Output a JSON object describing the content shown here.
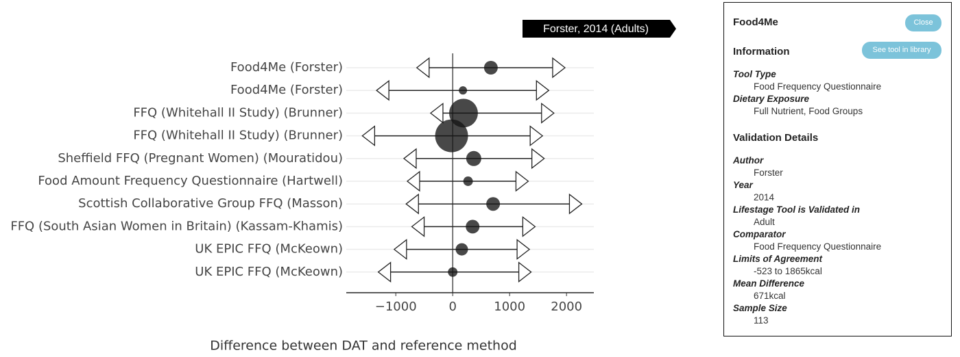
{
  "chart_data": {
    "type": "bubble-agreement",
    "categories": [
      "Food4Me (Forster)",
      "Food4Me (Forster)",
      "FFQ (Whitehall II Study) (Brunner)",
      "FFQ (Whitehall II Study) (Brunner)",
      "Sheffield FFQ (Pregnant Women) (Mouratidou)",
      "Food Amount Frequency Questionnaire (Hartwell)",
      "Scottish Collaborative Group FFQ (Masson)",
      "FFQ (South Asian Women in Britain) (Kassam-Khamis)",
      "UK EPIC FFQ (McKeown)",
      "UK EPIC FFQ (McKeown)"
    ],
    "values": [
      671,
      180,
      190,
      -20,
      370,
      270,
      710,
      350,
      160,
      0
    ],
    "lower": [
      -523,
      -1230,
      -280,
      -1480,
      -750,
      -690,
      -710,
      -610,
      -920,
      -1200
    ],
    "upper": [
      1865,
      1580,
      1670,
      1470,
      1500,
      1220,
      2160,
      1340,
      1240,
      1270
    ],
    "sizes": [
      113,
      41,
      498,
      651,
      137,
      55,
      113,
      113,
      92,
      55
    ],
    "xlim": [
      -1870,
      2480
    ],
    "xticks": [
      {
        "value": -1000,
        "label": "−1000"
      },
      0,
      1000,
      2000
    ],
    "x_label": "Difference between DAT and reference method",
    "tooltip": "Forster, 2014 (Adults)",
    "grid": true
  },
  "panel": {
    "title": "Food4Me",
    "buttons": [
      "Close",
      "See tool in library"
    ],
    "sections": [
      {
        "heading": "Information",
        "fields": [
          {
            "label": "Tool Type",
            "value": "Food Frequency Questionnaire"
          },
          {
            "label": "Dietary Exposure",
            "value": "Full Nutrient, Food Groups"
          }
        ]
      },
      {
        "heading": "Validation Details",
        "fields": [
          {
            "label": "Author",
            "value": "Forster"
          },
          {
            "label": "Year",
            "value": "2014"
          },
          {
            "label": "Lifestage Tool is Validated in",
            "value": "Adult"
          },
          {
            "label": "Comparator",
            "value": "Food Frequency Questionnaire"
          },
          {
            "label": "Limits of Agreement",
            "value": "-523 to 1865kcal"
          },
          {
            "label": "Mean Difference",
            "value": "671kcal"
          },
          {
            "label": "Sample Size",
            "value": "113"
          }
        ]
      }
    ]
  }
}
